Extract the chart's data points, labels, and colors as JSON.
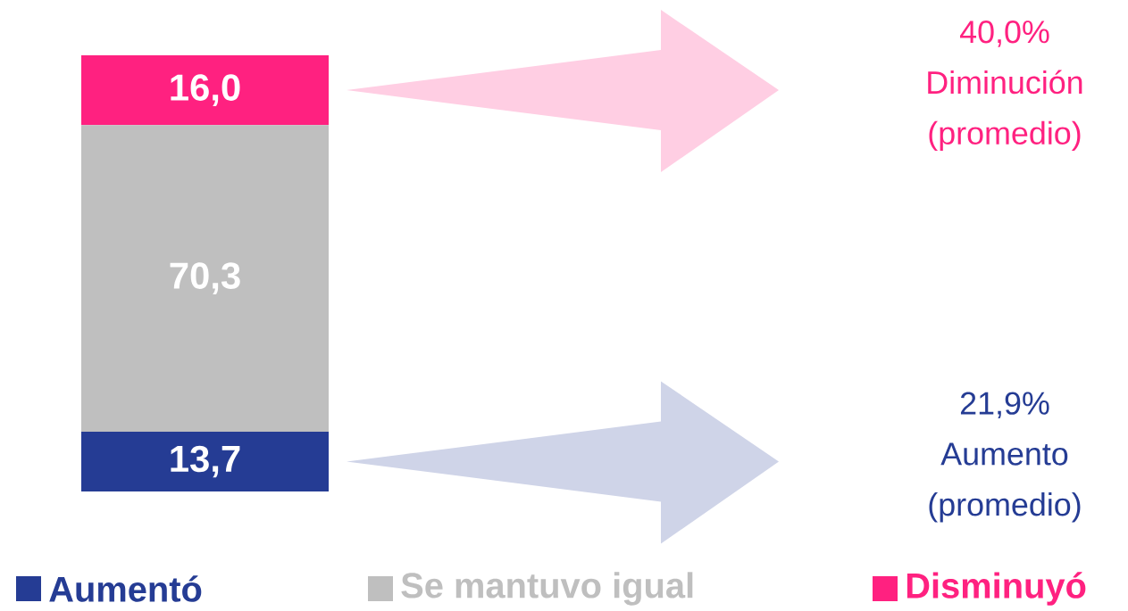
{
  "chart_data": {
    "type": "bar",
    "stacked": true,
    "categories": [
      null
    ],
    "legend": "bottom",
    "series": [
      {
        "name": "Aumentó",
        "color": "#253c94",
        "values": [
          13.7
        ],
        "value_labels": [
          "13,7"
        ]
      },
      {
        "name": "Se mantuvo igual",
        "color": "#bfbfbf",
        "values": [
          70.3
        ],
        "value_labels": [
          "70,3"
        ]
      },
      {
        "name": "Disminuyó",
        "color": "#ff2180",
        "values": [
          16.0
        ],
        "value_labels": [
          "16,0"
        ]
      }
    ],
    "annotations": [
      "40,0% Diminución (promedio)",
      "21,9% Aumento (promedio)"
    ]
  }
}
